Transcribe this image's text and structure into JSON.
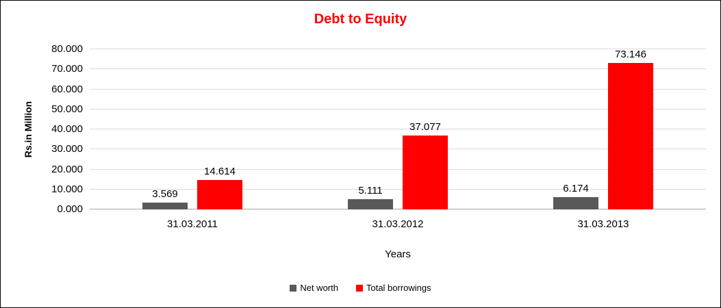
{
  "chart_data": {
    "type": "bar",
    "title": "Debt to Equity",
    "title_color": "#ff0000",
    "xlabel": "Years",
    "ylabel": "Rs.in Million",
    "categories": [
      "31.03.2011",
      "31.03.2012",
      "31.03.2013"
    ],
    "series": [
      {
        "name": "Net worth",
        "color": "#595959",
        "values": [
          3.569,
          5.111,
          6.174
        ],
        "labels": [
          "3.569",
          "5.111",
          "6.174"
        ]
      },
      {
        "name": "Total borrowings",
        "color": "#ff0000",
        "values": [
          14.614,
          37.077,
          73.146
        ],
        "labels": [
          "14.614",
          "37.077",
          "73.146"
        ]
      }
    ],
    "ylim": [
      0,
      80
    ],
    "ytick_step": 10,
    "yticks": [
      "0.000",
      "10.000",
      "20.000",
      "30.000",
      "40.000",
      "50.000",
      "60.000",
      "70.000",
      "80.000"
    ],
    "grid": true,
    "gridline_color": "#d9d9d9",
    "legend_position": "bottom"
  }
}
